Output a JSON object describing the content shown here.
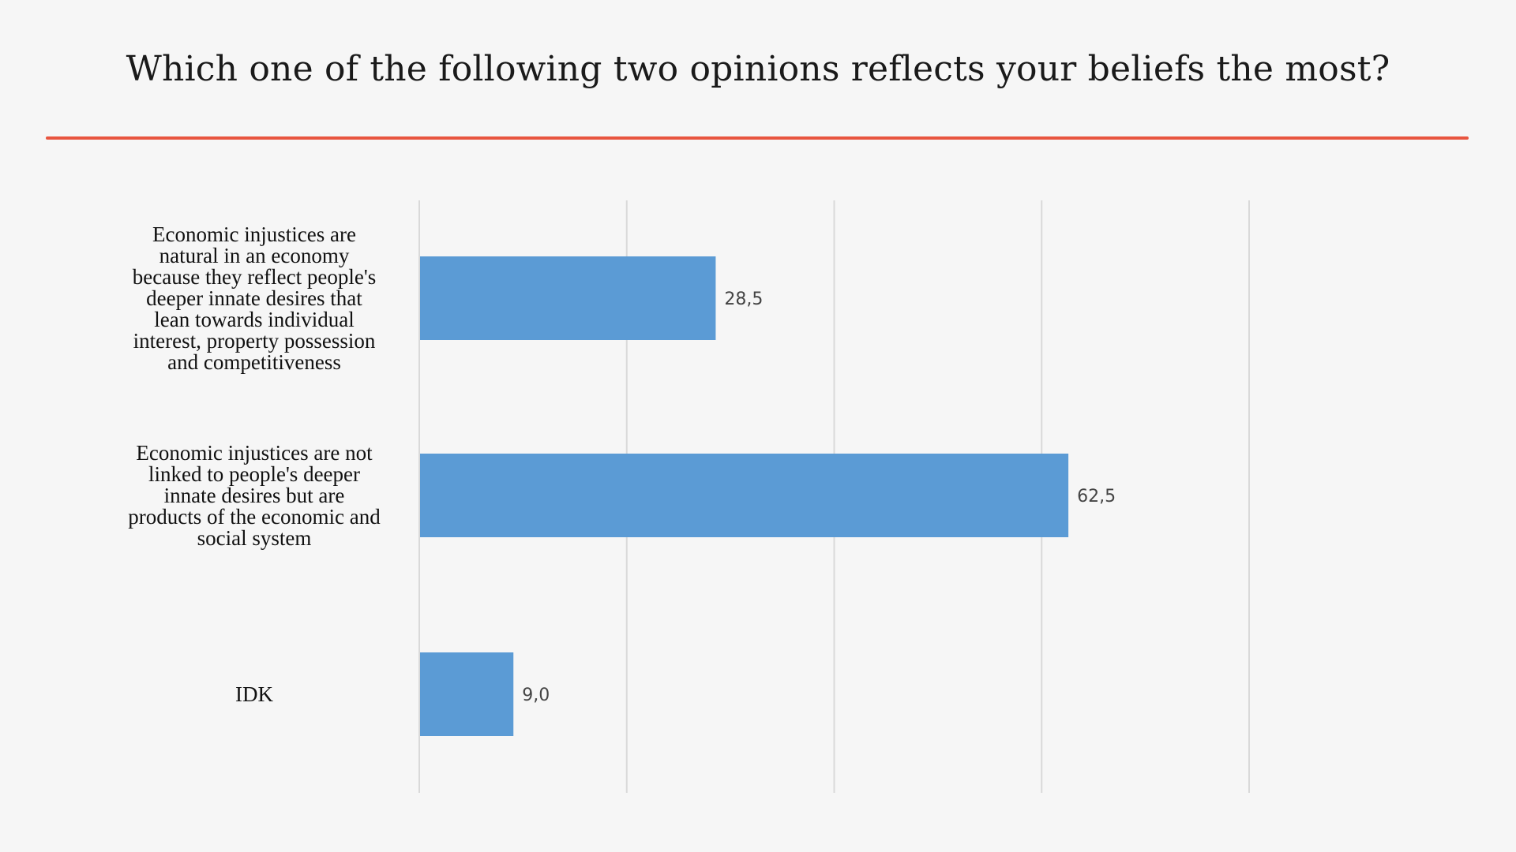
{
  "chart_data": {
    "type": "bar",
    "orientation": "horizontal",
    "title": "Which one of the following two opinions reflects your beliefs the most?",
    "categories": [
      "Economic injustices are natural in an economy because they reflect people's deeper innate desires that lean towards individual interest, property possession and competitiveness",
      "Economic injustices are not linked to people's deeper innate desires but are products of the economic and social system",
      "IDK"
    ],
    "category_lines": [
      [
        "Economic injustices are",
        "natural in an economy",
        "because they reflect people's",
        "deeper innate desires that",
        "lean towards individual",
        "interest, property possession",
        "and competitiveness"
      ],
      [
        "Economic injustices are not",
        "linked to people's deeper",
        "innate desires but are",
        "products of the economic and",
        "social system"
      ],
      [
        "IDK"
      ]
    ],
    "values": [
      28.5,
      62.5,
      9.0
    ],
    "value_labels": [
      "28,5",
      "62,5",
      "9,0"
    ],
    "xlim": [
      0,
      80
    ],
    "gridlines": [
      0,
      20,
      40,
      60,
      80
    ],
    "grid": true,
    "show_axis_tick_labels": false,
    "colors": {
      "bar": "#5b9bd5",
      "grid": "#d9d9d9",
      "title_rule": "#e8553f"
    }
  }
}
